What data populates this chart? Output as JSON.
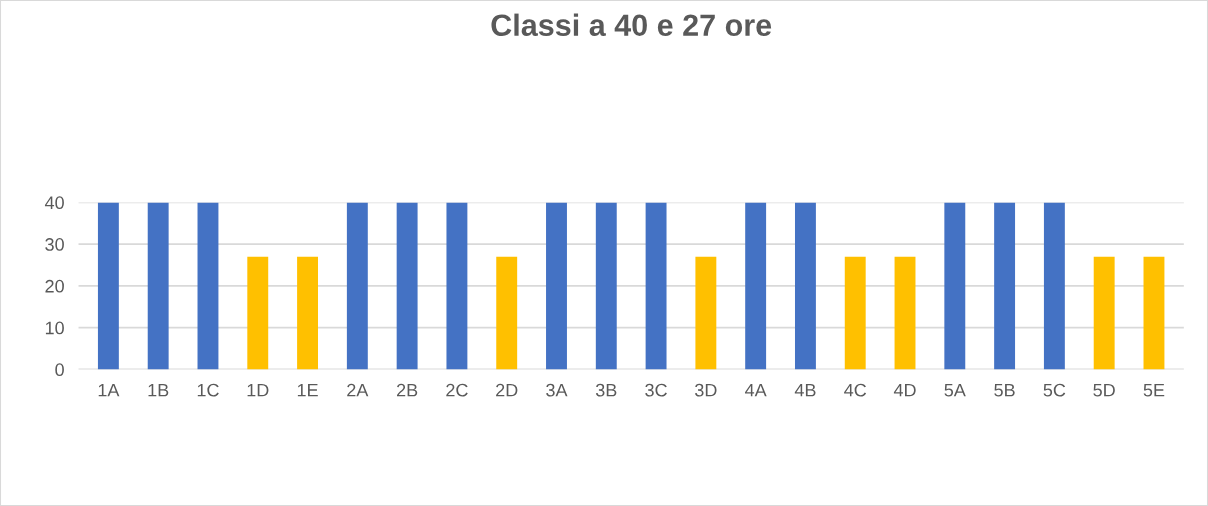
{
  "chart_data": {
    "type": "bar",
    "title": "Classi a 40 e 27 ore",
    "categories": [
      "1A",
      "1B",
      "1C",
      "1D",
      "1E",
      "2A",
      "2B",
      "2C",
      "2D",
      "3A",
      "3B",
      "3C",
      "3D",
      "4A",
      "4B",
      "4C",
      "4D",
      "5A",
      "5B",
      "5C",
      "5D",
      "5E"
    ],
    "values": [
      40,
      40,
      40,
      27,
      27,
      40,
      40,
      40,
      27,
      40,
      40,
      40,
      27,
      40,
      40,
      27,
      27,
      40,
      40,
      40,
      27,
      27
    ],
    "colors": [
      "#4472c4",
      "#4472c4",
      "#4472c4",
      "#ffc000",
      "#ffc000",
      "#4472c4",
      "#4472c4",
      "#4472c4",
      "#ffc000",
      "#4472c4",
      "#4472c4",
      "#4472c4",
      "#ffc000",
      "#4472c4",
      "#4472c4",
      "#ffc000",
      "#ffc000",
      "#4472c4",
      "#4472c4",
      "#4472c4",
      "#ffc000",
      "#ffc000"
    ],
    "ylim": [
      0,
      40
    ],
    "yticks": [
      0,
      10,
      20,
      30,
      40
    ],
    "grid": "y"
  }
}
